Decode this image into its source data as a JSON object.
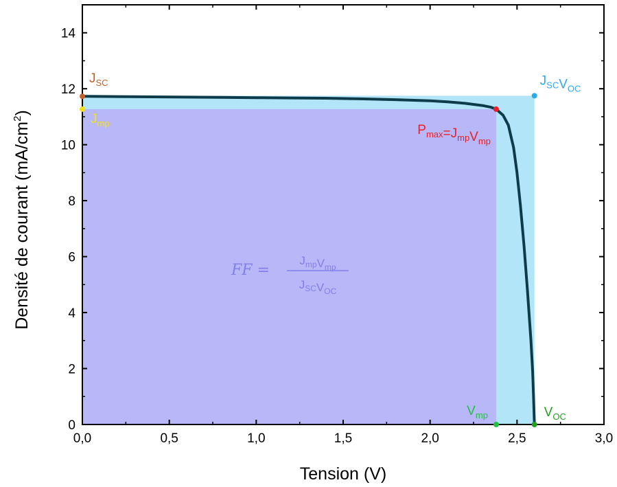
{
  "chart_data": {
    "type": "line",
    "xlabel": "Tension (V)",
    "ylabel": "Densité de courant (mA/cm²)",
    "ylabel_parts": {
      "main": "Densité de courant (mA/cm",
      "sup": "2",
      "tail": ")"
    },
    "xlim": [
      0,
      3.0
    ],
    "ylim": [
      0,
      15
    ],
    "xticks": [
      0,
      0.5,
      1.0,
      1.5,
      2.0,
      2.5,
      3.0
    ],
    "xtick_labels": [
      "0,0",
      "0,5",
      "1,0",
      "1,5",
      "2,0",
      "2,5",
      "3,0"
    ],
    "yticks": [
      0,
      2,
      4,
      6,
      8,
      10,
      12,
      14
    ],
    "ytick_labels": [
      "0",
      "2",
      "4",
      "6",
      "8",
      "10",
      "12",
      "14"
    ],
    "grid": false,
    "series": [
      {
        "x": [
          0.0,
          0.2,
          0.4,
          0.6,
          0.8,
          1.0,
          1.2,
          1.4,
          1.6,
          1.8,
          2.0,
          2.1,
          2.2,
          2.3,
          2.35,
          2.38,
          2.42,
          2.45,
          2.48,
          2.5,
          2.52,
          2.54,
          2.56,
          2.58,
          2.59,
          2.595,
          2.6
        ],
        "y": [
          11.73,
          11.72,
          11.71,
          11.7,
          11.69,
          11.68,
          11.67,
          11.66,
          11.64,
          11.61,
          11.57,
          11.53,
          11.48,
          11.4,
          11.34,
          11.27,
          11.05,
          10.7,
          9.9,
          9.0,
          7.8,
          6.4,
          4.8,
          3.0,
          1.9,
          1.0,
          0.0
        ]
      }
    ],
    "curve_color": "#0d3b4a",
    "regions": {
      "jsc_voc": {
        "x": [
          0,
          2.6
        ],
        "y": [
          0,
          11.75
        ],
        "color": "#b3e5f8"
      },
      "jmp_vmp": {
        "x": [
          0,
          2.38
        ],
        "y": [
          0,
          11.27
        ],
        "color": "#b8b8f8"
      }
    },
    "points": [
      {
        "label": "J",
        "sub": "SC",
        "x": 0.0,
        "y": 11.73,
        "color": "#c0622d"
      },
      {
        "label": "J",
        "sub": "mp",
        "x": 0.0,
        "y": 11.27,
        "color": "#f0e020"
      },
      {
        "label": "J",
        "sub": "SC",
        "label2": "V",
        "sub2": "OC",
        "x": 2.6,
        "y": 11.75,
        "color": "#2eaae8"
      },
      {
        "label": "P",
        "sub": "max",
        "label2": "=J",
        "sub2": "mp",
        "label3": "V",
        "sub3": "mp",
        "x": 2.38,
        "y": 11.27,
        "color": "#e8202a"
      },
      {
        "label": "V",
        "sub": "mp",
        "x": 2.38,
        "y": 0.0,
        "color": "#22c040"
      },
      {
        "label": "V",
        "sub": "OC",
        "x": 2.6,
        "y": 0.0,
        "color": "#22a020"
      }
    ],
    "formula": {
      "lhs": "FF =",
      "num_a": "J",
      "num_a_sub": "mp",
      "num_b": "V",
      "num_b_sub": "mp",
      "den_a": "J",
      "den_a_sub": "SC",
      "den_b": "V",
      "den_b_sub": "OC",
      "color": "#8080e8"
    }
  }
}
